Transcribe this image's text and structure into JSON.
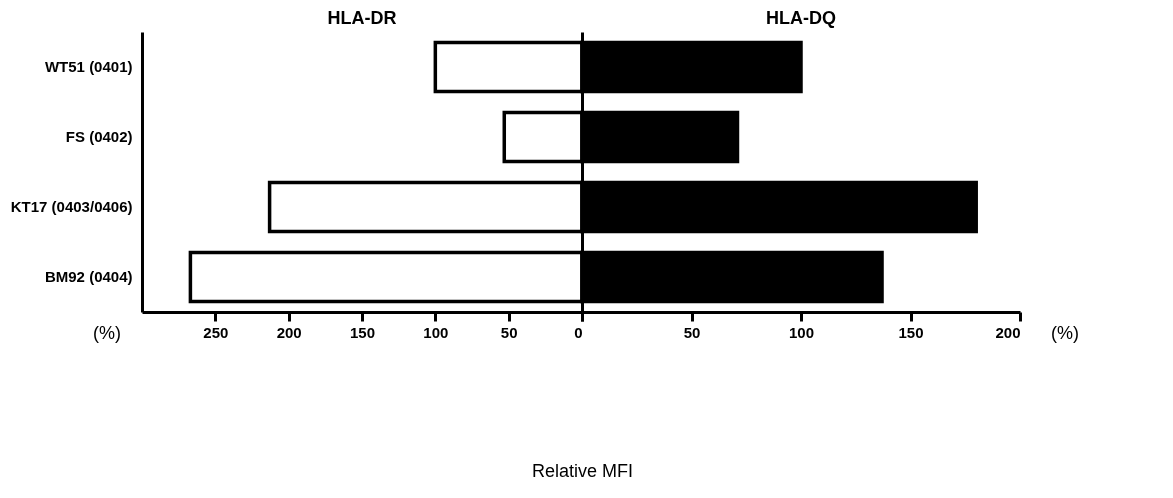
{
  "chart_data": [
    {
      "type": "bar",
      "orientation": "horizontal",
      "title": "HLA-DR",
      "xlabel": "Relative MFI",
      "categories": [
        "WT51 (0401)",
        "FS (0402)",
        "KT17 (0403/0406)",
        "BM92 (0404)"
      ],
      "series": [
        {
          "color": "#ffffff",
          "values": [
            100,
            53,
            213,
            267
          ]
        }
      ],
      "xlim": [
        300,
        0
      ],
      "xticks": [
        250,
        200,
        150,
        100,
        50,
        0
      ],
      "annotations": [
        "(%)"
      ]
    },
    {
      "type": "bar",
      "orientation": "horizontal",
      "title": "HLA-DQ",
      "series": [
        {
          "color": "#000000",
          "values": [
            100,
            71,
            180,
            137
          ]
        }
      ],
      "xlim": [
        0,
        200
      ],
      "xticks": [
        {
          "value": 0,
          "label": null
        },
        50,
        100,
        150,
        200
      ],
      "tick_labels": "x",
      "annotations": [
        "(%)"
      ]
    }
  ]
}
